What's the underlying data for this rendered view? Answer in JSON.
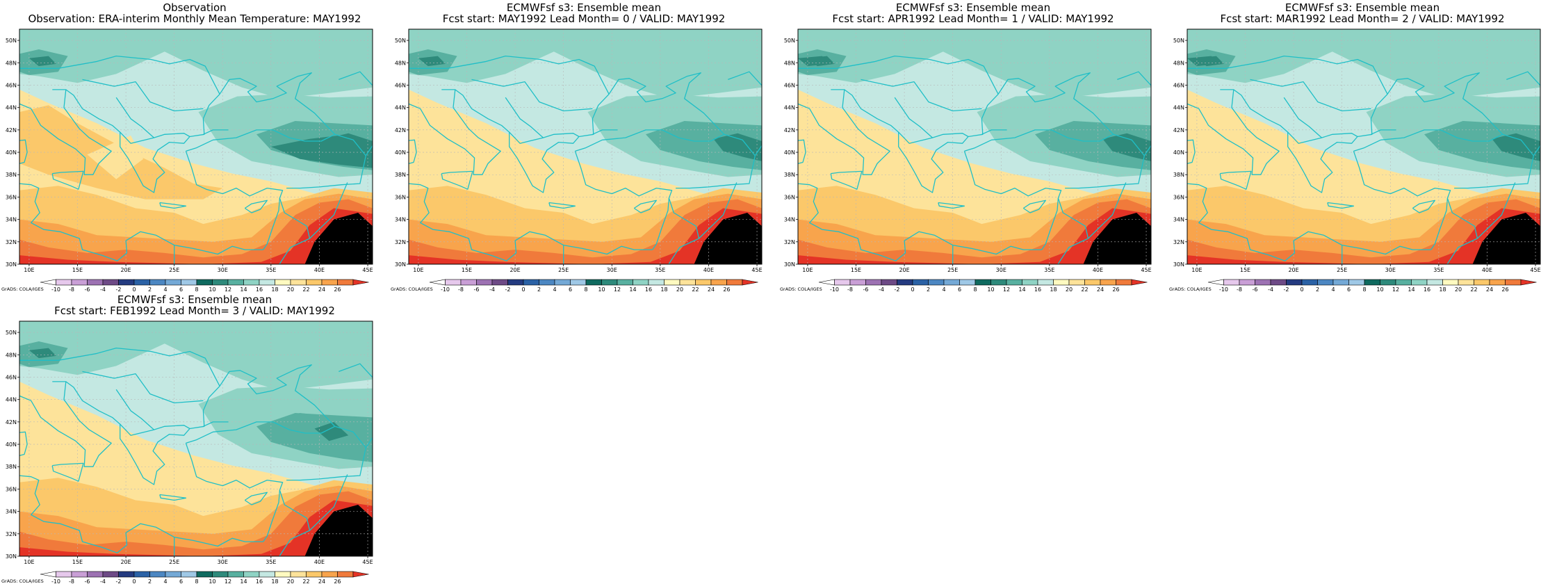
{
  "panels": [
    {
      "title1": "Observation",
      "title2": "Observation: ERA-interim Monthly Mean Temperature: MAY1992",
      "variant": 0
    },
    {
      "title1": "ECMWFsf s3: Ensemble mean",
      "title2": "Fcst start: MAY1992  Lead Month= 0 / VALID: MAY1992",
      "variant": 1
    },
    {
      "title1": "ECMWFsf s3: Ensemble mean",
      "title2": "Fcst start: APR1992  Lead Month= 1 / VALID: MAY1992",
      "variant": 2
    },
    {
      "title1": "ECMWFsf s3: Ensemble mean",
      "title2": "Fcst start: MAR1992  Lead Month= 2 / VALID: MAY1992",
      "variant": 3
    },
    {
      "title1": "ECMWFsf s3: Ensemble mean",
      "title2": "Fcst start: FEB1992  Lead Month= 3 / VALID: MAY1992",
      "variant": 4
    }
  ],
  "lon_ticks": [
    "10E",
    "15E",
    "20E",
    "25E",
    "30E",
    "35E",
    "40E",
    "45E"
  ],
  "lat_ticks": [
    "50N",
    "48N",
    "46N",
    "44N",
    "42N",
    "40N",
    "38N",
    "36N",
    "34N",
    "32N",
    "30N"
  ],
  "colorbar": {
    "labels": [
      "-10",
      "-8",
      "-6",
      "-4",
      "-2",
      "0",
      "2",
      "4",
      "6",
      "8",
      "10",
      "12",
      "14",
      "16",
      "18",
      "20",
      "22",
      "24",
      "26"
    ],
    "colors": [
      "#ffffff",
      "#e6c8ec",
      "#c99fd6",
      "#9d72b3",
      "#6e4a86",
      "#243b80",
      "#2b62a6",
      "#4c87c2",
      "#74a9d6",
      "#9fc8e6",
      "#0f6a5f",
      "#2e8a7b",
      "#58b0a0",
      "#8fd3c4",
      "#c4e8e2",
      "#fffac0",
      "#fde39a",
      "#fbc86a",
      "#f8a44c",
      "#f07a3b",
      "#e43326"
    ]
  },
  "credit": "GrADS: COLA/IGES",
  "colors": {
    "coast": "#1fbfc7",
    "grid": "#b8b8b8"
  }
}
